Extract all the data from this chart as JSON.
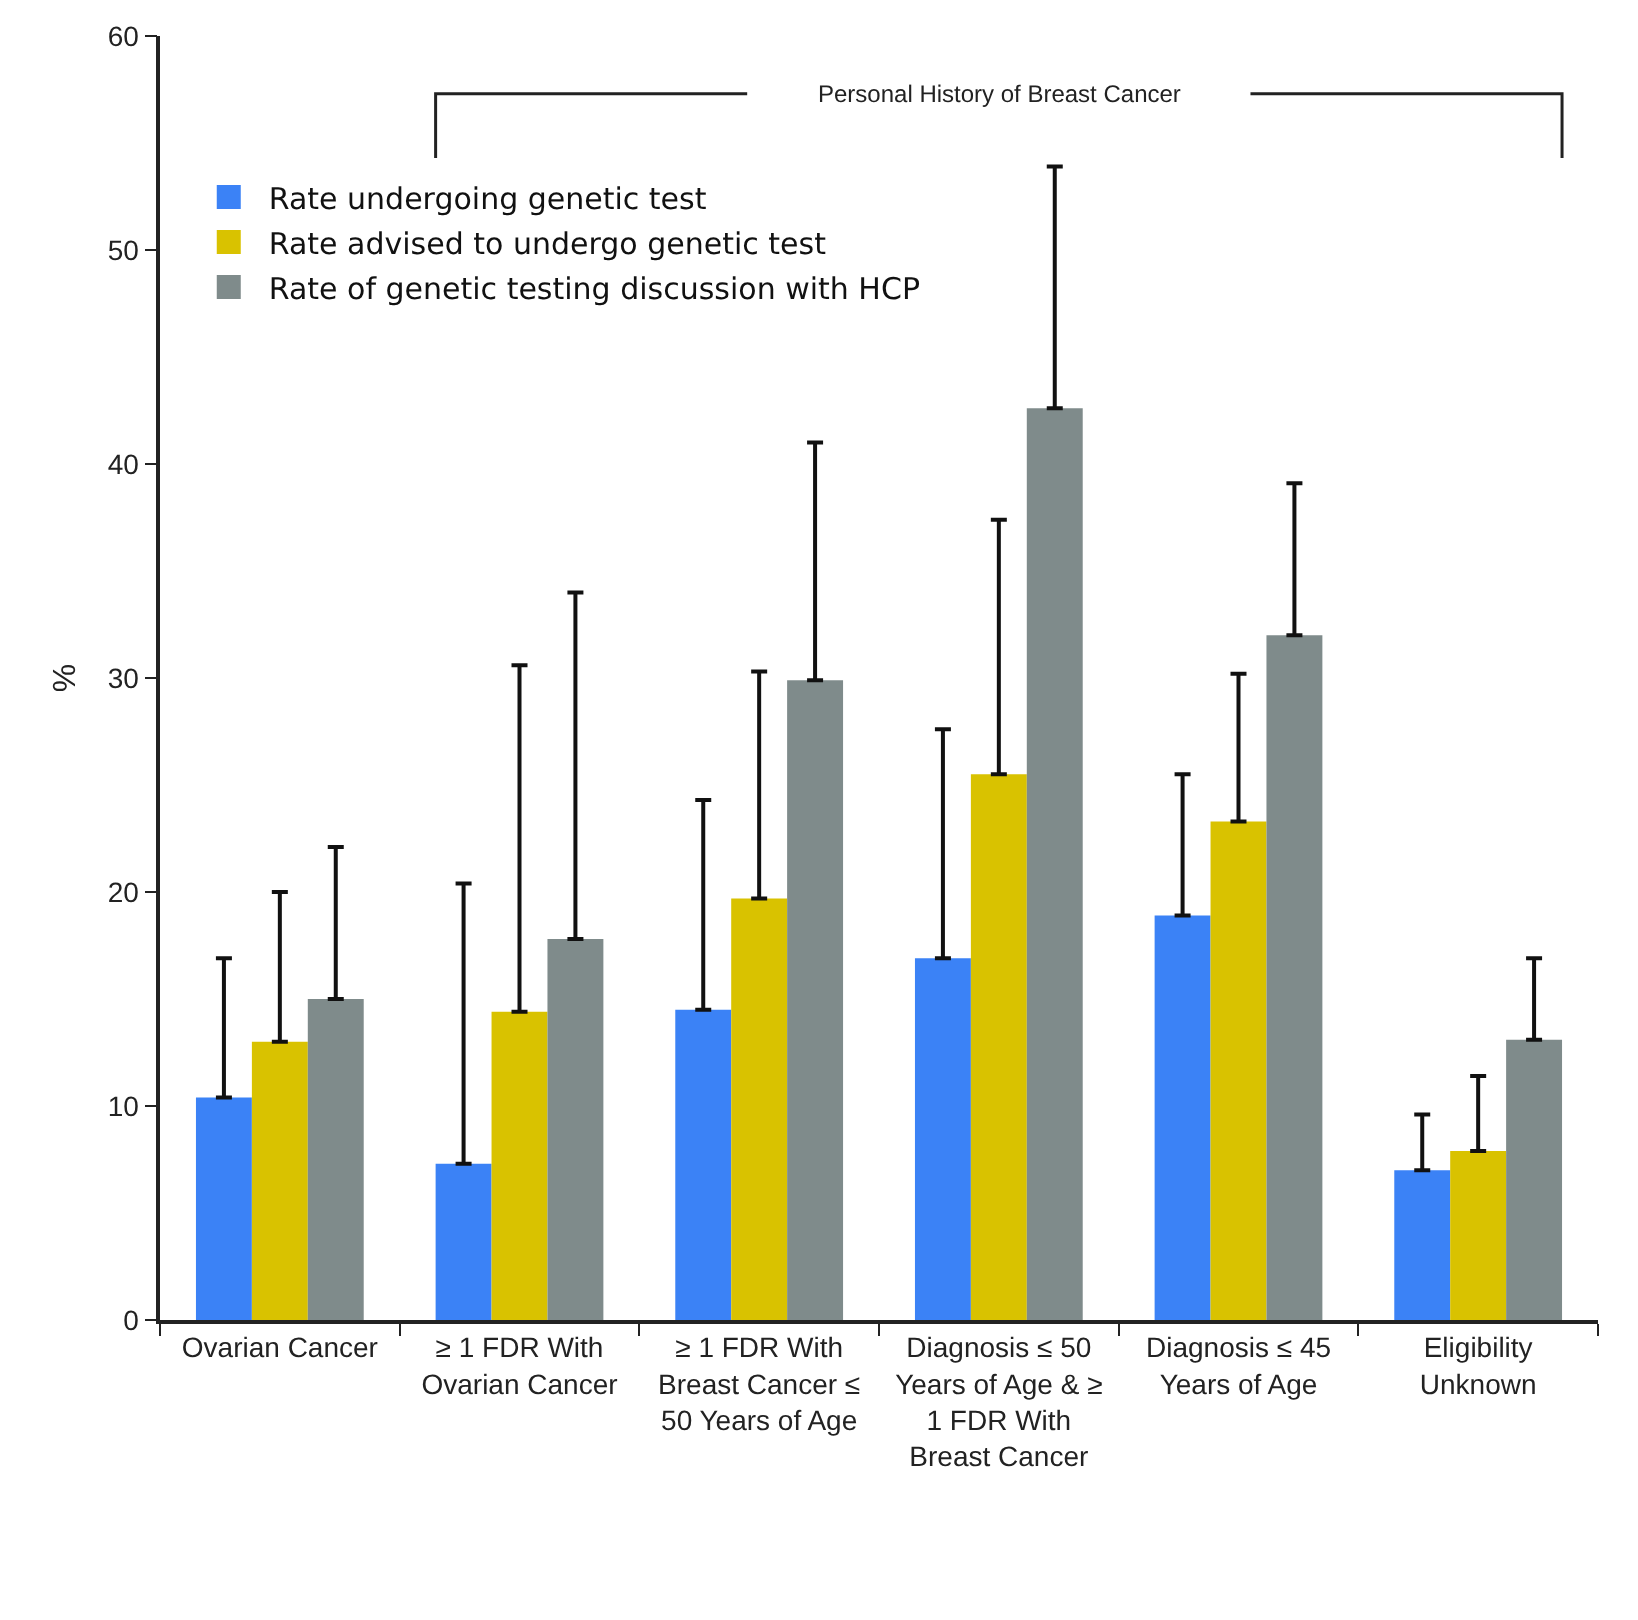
{
  "chart_data": {
    "type": "bar",
    "ylabel": "%",
    "categories": [
      "Ovarian Cancer",
      "≥ 1 FDR With Ovarian Cancer",
      "≥ 1 FDR With Breast Cancer ≤ 50 Years of Age",
      "Diagnosis ≤ 50 Years of Age & ≥ 1 FDR With Breast Cancer",
      "Diagnosis ≤ 45 Years of Age",
      "Eligibility Unknown"
    ],
    "series": [
      {
        "name": "Rate undergoing genetic test",
        "color": "#3b82f6",
        "values": [
          10.4,
          7.3,
          14.5,
          16.9,
          18.9,
          7.0
        ],
        "errors": [
          [
            10.4,
            16.9
          ],
          [
            7.3,
            20.4
          ],
          [
            14.5,
            24.3
          ],
          [
            16.9,
            27.6
          ],
          [
            18.9,
            25.5
          ],
          [
            7.0,
            9.6
          ]
        ]
      },
      {
        "name": "Rate advised to undergo genetic test",
        "color": "#d9c200",
        "values": [
          13.0,
          14.4,
          19.7,
          25.5,
          23.3,
          7.9
        ],
        "errors": [
          [
            13.0,
            20.0
          ],
          [
            14.4,
            30.6
          ],
          [
            19.7,
            30.3
          ],
          [
            25.5,
            37.4
          ],
          [
            23.3,
            30.2
          ],
          [
            7.9,
            11.4
          ]
        ]
      },
      {
        "name": "Rate of genetic testing discussion with HCP",
        "color": "#7f8b8b",
        "values": [
          15.0,
          17.8,
          29.9,
          42.6,
          32.0,
          13.1
        ],
        "errors": [
          [
            15.0,
            22.1
          ],
          [
            17.8,
            34.0
          ],
          [
            29.9,
            41.0
          ],
          [
            42.6,
            53.9
          ],
          [
            32.0,
            39.1
          ],
          [
            13.1,
            16.9
          ]
        ]
      }
    ],
    "ylim": [
      0,
      60
    ],
    "yticks": [
      0,
      10,
      20,
      30,
      40,
      50,
      60
    ],
    "grid": false,
    "legend": "top left",
    "annotations": [
      "Personal History of Breast Cancer"
    ]
  }
}
